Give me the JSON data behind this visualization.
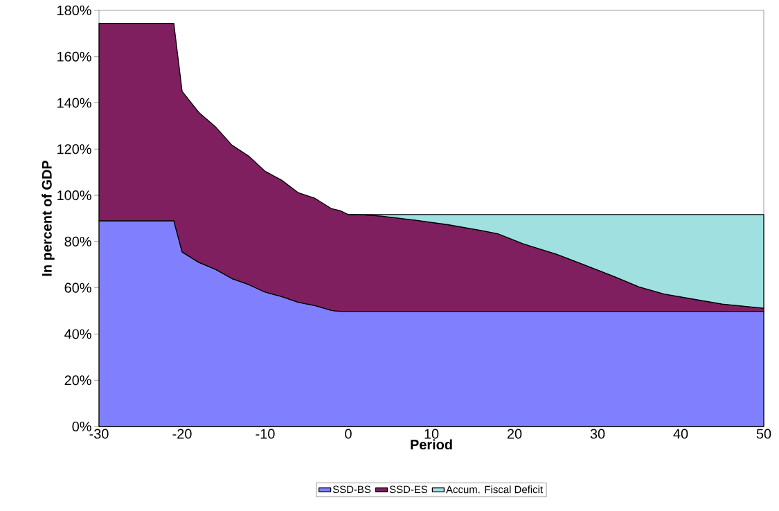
{
  "chart_data": {
    "type": "area",
    "stacked": true,
    "xlabel": "Period",
    "ylabel": "In percent of GDP",
    "x": [
      -30,
      -21,
      -20,
      -18,
      -16,
      -14,
      -12,
      -10,
      -8,
      -6,
      -4,
      -2,
      -1,
      0,
      2,
      4,
      8,
      12,
      16,
      18,
      21,
      25,
      28,
      32,
      35,
      38,
      42,
      45,
      50
    ],
    "series": [
      {
        "name": "SSD-BS",
        "color": "#8080ff",
        "values": [
          89,
          89,
          75.5,
          71,
          68,
          64,
          61.4,
          58.1,
          56.2,
          53.7,
          52.3,
          50.2,
          49.8,
          49.8,
          49.8,
          49.8,
          49.8,
          49.8,
          49.8,
          49.8,
          49.8,
          49.8,
          49.8,
          49.8,
          49.8,
          49.8,
          49.8,
          49.8,
          49.8
        ]
      },
      {
        "name": "SSD-ES",
        "color": "#7f1f5f",
        "values": [
          85.4,
          85.4,
          69.5,
          64.9,
          61.7,
          57.7,
          55.6,
          52.3,
          50.3,
          47.4,
          46.4,
          44.0,
          43.6,
          41.9,
          41.7,
          41.2,
          39.5,
          37.5,
          35.0,
          33.6,
          29.3,
          24.8,
          20.7,
          15.1,
          10.6,
          7.5,
          5.0,
          3.2,
          1.4
        ]
      },
      {
        "name": "Accum. Fiscal Deficit",
        "color": "#a0e0e0",
        "values": [
          null,
          null,
          null,
          null,
          null,
          null,
          null,
          null,
          null,
          null,
          null,
          null,
          null,
          0,
          0.2,
          0.7,
          2.4,
          4.4,
          6.9,
          8.3,
          12.6,
          17.1,
          21.2,
          26.8,
          31.3,
          34.4,
          36.9,
          38.7,
          40.5
        ]
      }
    ],
    "xlim": [
      -30,
      50
    ],
    "xticks": [
      -30,
      -20,
      -10,
      0,
      10,
      20,
      30,
      40,
      50
    ],
    "ylim": [
      0,
      180
    ],
    "yticks": [
      {
        "value": 0,
        "label": "0%"
      },
      {
        "value": 20,
        "label": "20%"
      },
      {
        "value": 40,
        "label": "40%"
      },
      {
        "value": 60,
        "label": "60%"
      },
      {
        "value": 80,
        "label": "80%"
      },
      {
        "value": 100,
        "label": "100%"
      },
      {
        "value": 120,
        "label": "120%"
      },
      {
        "value": 140,
        "label": "140%"
      },
      {
        "value": 160,
        "label": "160%"
      },
      {
        "value": 180,
        "label": "180%"
      }
    ],
    "legend": "bottom",
    "grid": false
  }
}
